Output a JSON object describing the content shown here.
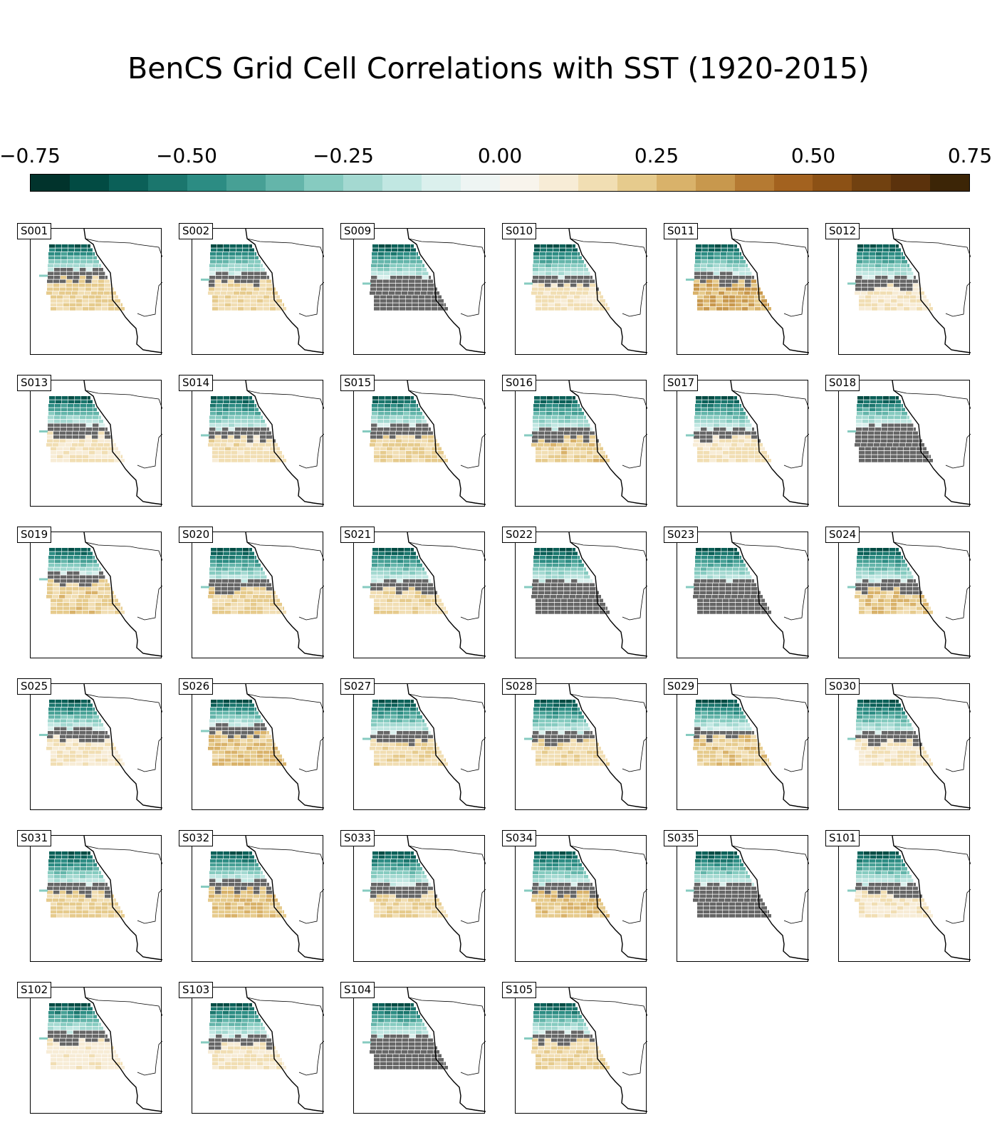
{
  "title": "BenCS Grid Cell Correlations with SST (1920-2015)",
  "colorbar": {
    "min": -0.75,
    "max": 0.75,
    "levels": 24,
    "ticks": [
      "−0.75",
      "−0.50",
      "−0.25",
      "0.00",
      "0.25",
      "0.50",
      "0.75"
    ],
    "colors": [
      "#01332c",
      "#024b43",
      "#0b6058",
      "#1b766d",
      "#2c8c83",
      "#47a095",
      "#64b5aa",
      "#86cbc0",
      "#a4d9d1",
      "#c1e7e2",
      "#dbf0ed",
      "#eef5f3",
      "#f8f4ec",
      "#f7ecd6",
      "#f1deb3",
      "#e6cb8d",
      "#d9b26a",
      "#c8984d",
      "#b57a32",
      "#a3621f",
      "#8c5115",
      "#714110",
      "#5b320c",
      "#3c2506"
    ],
    "insignificant_color": "#666666"
  },
  "panels": [
    {
      "id": "S001",
      "split": 0.42,
      "warm": 0.55
    },
    {
      "id": "S002",
      "split": 0.48,
      "warm": 0.45
    },
    {
      "id": "S009",
      "split": 0.55,
      "warm": 0.0
    },
    {
      "id": "S010",
      "split": 0.5,
      "warm": 0.35
    },
    {
      "id": "S011",
      "split": 0.45,
      "warm": 0.85
    },
    {
      "id": "S012",
      "split": 0.55,
      "warm": 0.3
    },
    {
      "id": "S013",
      "split": 0.45,
      "warm": 0.3
    },
    {
      "id": "S014",
      "split": 0.5,
      "warm": 0.4
    },
    {
      "id": "S015",
      "split": 0.45,
      "warm": 0.55
    },
    {
      "id": "S016",
      "split": 0.55,
      "warm": 0.6
    },
    {
      "id": "S017",
      "split": 0.55,
      "warm": 0.35
    },
    {
      "id": "S018",
      "split": 0.45,
      "warm": 0.0
    },
    {
      "id": "S019",
      "split": 0.42,
      "warm": 0.6
    },
    {
      "id": "S020",
      "split": 0.5,
      "warm": 0.55
    },
    {
      "id": "S021",
      "split": 0.5,
      "warm": 0.45
    },
    {
      "id": "S022",
      "split": 0.55,
      "warm": 0.0
    },
    {
      "id": "S023",
      "split": 0.55,
      "warm": 0.0
    },
    {
      "id": "S024",
      "split": 0.5,
      "warm": 0.6
    },
    {
      "id": "S025",
      "split": 0.45,
      "warm": 0.3
    },
    {
      "id": "S026",
      "split": 0.4,
      "warm": 0.65
    },
    {
      "id": "S027",
      "split": 0.5,
      "warm": 0.45
    },
    {
      "id": "S028",
      "split": 0.55,
      "warm": 0.45
    },
    {
      "id": "S029",
      "split": 0.45,
      "warm": 0.6
    },
    {
      "id": "S030",
      "split": 0.55,
      "warm": 0.3
    },
    {
      "id": "S031",
      "split": 0.52,
      "warm": 0.55
    },
    {
      "id": "S032",
      "split": 0.45,
      "warm": 0.7
    },
    {
      "id": "S033",
      "split": 0.55,
      "warm": 0.5
    },
    {
      "id": "S034",
      "split": 0.5,
      "warm": 0.65
    },
    {
      "id": "S035",
      "split": 0.55,
      "warm": 0.0
    },
    {
      "id": "S101",
      "split": 0.55,
      "warm": 0.3
    },
    {
      "id": "S102",
      "split": 0.45,
      "warm": 0.25
    },
    {
      "id": "S103",
      "split": 0.5,
      "warm": 0.3
    },
    {
      "id": "S104",
      "split": 0.55,
      "warm": 0.0
    },
    {
      "id": "S105",
      "split": 0.45,
      "warm": 0.5
    }
  ]
}
